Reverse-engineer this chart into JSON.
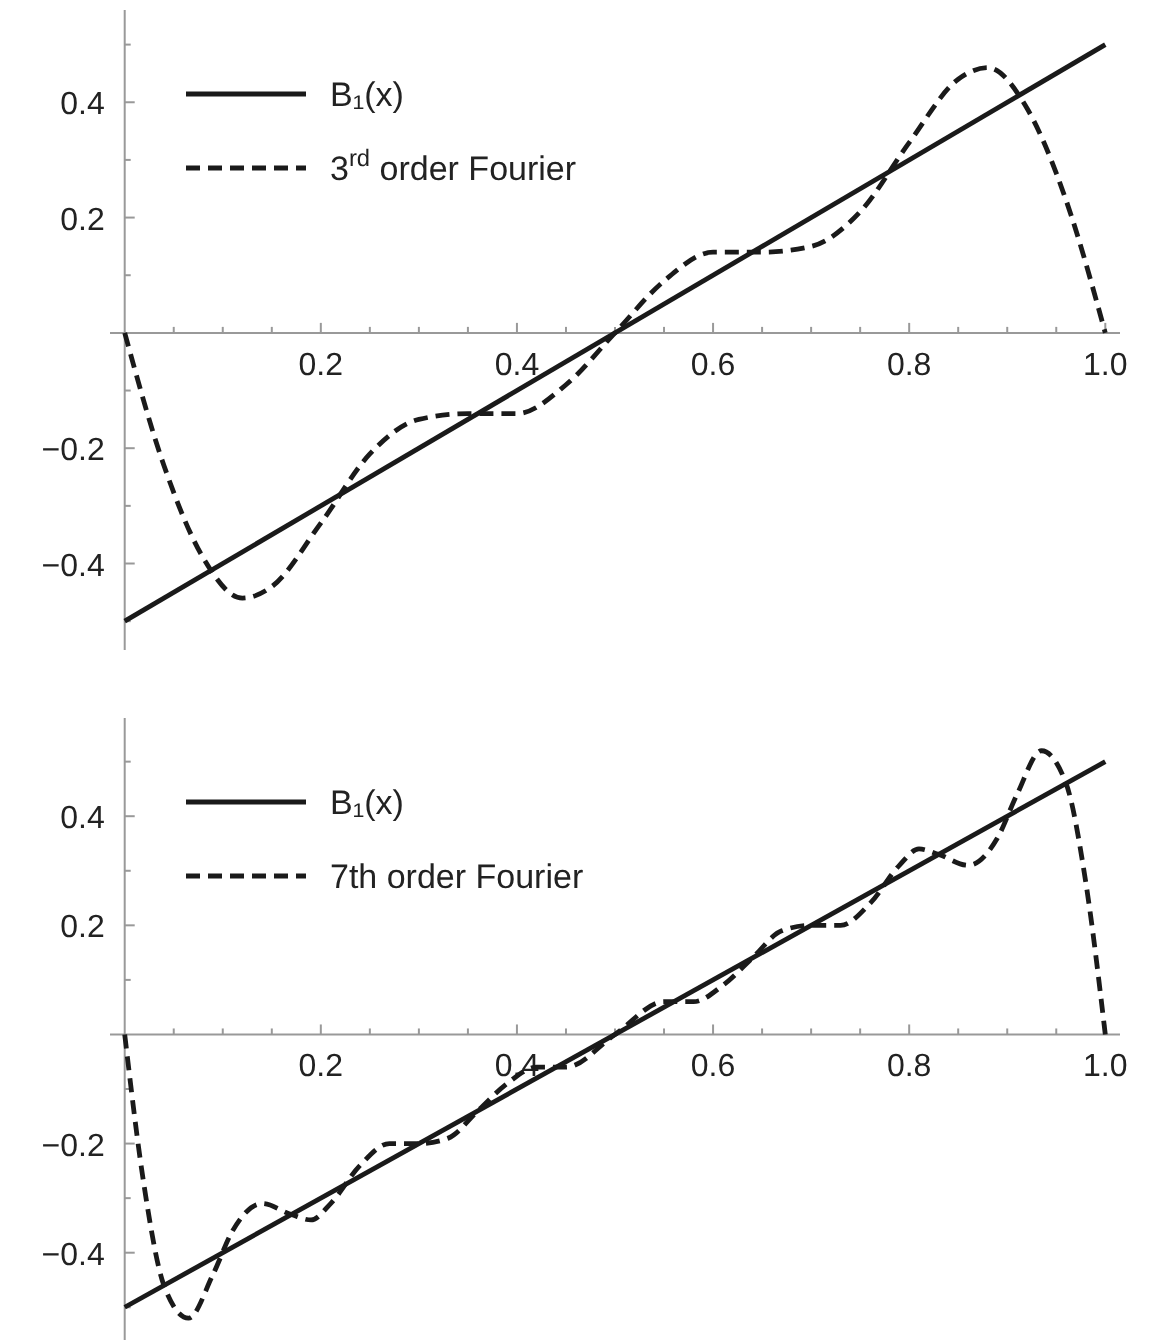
{
  "chart_data": [
    {
      "type": "line",
      "xlim": [
        -0.015,
        1.015
      ],
      "ylim": [
        -0.55,
        0.56
      ],
      "legend": "top left",
      "xticks": [
        {
          "value": 0.05,
          "label": null
        },
        {
          "value": 0.1,
          "label": null
        },
        {
          "value": 0.15,
          "label": null
        },
        0.2,
        {
          "value": 0.25,
          "label": null
        },
        {
          "value": 0.3,
          "label": null
        },
        {
          "value": 0.35,
          "label": null
        },
        0.4,
        {
          "value": 0.45,
          "label": null
        },
        {
          "value": 0.5,
          "label": null
        },
        {
          "value": 0.55,
          "label": null
        },
        0.6,
        {
          "value": 0.65,
          "label": null
        },
        {
          "value": 0.7,
          "label": null
        },
        {
          "value": 0.75,
          "label": null
        },
        0.8,
        {
          "value": 0.85,
          "label": null
        },
        {
          "value": 0.9,
          "label": null
        },
        {
          "value": 0.95,
          "label": null
        },
        {
          "value": 1,
          "label": "1.0"
        }
      ],
      "yticks": [
        {
          "value": -0.5,
          "label": null
        },
        -0.4,
        {
          "value": -0.3,
          "label": null
        },
        -0.2,
        {
          "value": -0.1,
          "label": null
        },
        {
          "value": 0.1,
          "label": null
        },
        0.2,
        {
          "value": 0.3,
          "label": null
        },
        0.4,
        {
          "value": 0.5,
          "label": null
        }
      ],
      "series": [
        {
          "name": "B₁(x)",
          "color": "#1a1a1a",
          "line_style": "solid",
          "x": [
            0,
            1
          ],
          "values": [
            -0.5,
            0.5
          ]
        },
        {
          "name": "3$^{rd}$ order Fourier",
          "color": "#1a1a1a",
          "line_style": "dashed",
          "x": [
            0,
            0.04,
            0.08,
            0.12,
            0.15,
            0.2,
            0.25,
            0.3,
            0.35,
            0.4,
            0.45,
            0.5,
            0.55,
            0.6,
            0.65,
            0.7,
            0.75,
            0.8,
            0.85,
            0.88,
            0.92,
            0.96,
            1
          ],
          "values": [
            0,
            -0.23,
            -0.39,
            -0.46,
            -0.44,
            -0.33,
            -0.21,
            -0.15,
            -0.14,
            -0.14,
            -0.09,
            0,
            0.09,
            0.14,
            0.14,
            0.15,
            0.21,
            0.33,
            0.44,
            0.46,
            0.39,
            0.23,
            0
          ]
        }
      ]
    },
    {
      "type": "line",
      "xlim": [
        -0.015,
        1.015
      ],
      "ylim": [
        -0.56,
        0.58
      ],
      "legend": "top left",
      "xticks": [
        {
          "value": 0.05,
          "label": null
        },
        {
          "value": 0.1,
          "label": null
        },
        {
          "value": 0.15,
          "label": null
        },
        0.2,
        {
          "value": 0.25,
          "label": null
        },
        {
          "value": 0.3,
          "label": null
        },
        {
          "value": 0.35,
          "label": null
        },
        0.4,
        {
          "value": 0.45,
          "label": null
        },
        {
          "value": 0.5,
          "label": null
        },
        {
          "value": 0.55,
          "label": null
        },
        0.6,
        {
          "value": 0.65,
          "label": null
        },
        {
          "value": 0.7,
          "label": null
        },
        {
          "value": 0.75,
          "label": null
        },
        0.8,
        {
          "value": 0.85,
          "label": null
        },
        {
          "value": 0.9,
          "label": null
        },
        {
          "value": 0.95,
          "label": null
        },
        {
          "value": 1,
          "label": "1.0"
        }
      ],
      "yticks": [
        {
          "value": -0.5,
          "label": null
        },
        -0.4,
        {
          "value": -0.3,
          "label": null
        },
        -0.2,
        {
          "value": -0.1,
          "label": null
        },
        {
          "value": 0.1,
          "label": null
        },
        0.2,
        {
          "value": 0.3,
          "label": null
        },
        0.4,
        {
          "value": 0.5,
          "label": null
        }
      ],
      "series": [
        {
          "name": "B₁(x)",
          "color": "#1a1a1a",
          "line_style": "solid",
          "x": [
            0,
            1
          ],
          "values": [
            -0.5,
            0.5
          ]
        },
        {
          "name": "7th order Fourier",
          "color": "#1a1a1a",
          "line_style": "dashed",
          "x": [
            0,
            0.02,
            0.04,
            0.065,
            0.09,
            0.11,
            0.14,
            0.17,
            0.19,
            0.21,
            0.24,
            0.27,
            0.3,
            0.33,
            0.36,
            0.39,
            0.42,
            0.45,
            0.5,
            0.55,
            0.58,
            0.61,
            0.64,
            0.67,
            0.7,
            0.73,
            0.76,
            0.79,
            0.81,
            0.83,
            0.86,
            0.89,
            0.91,
            0.935,
            0.96,
            0.98,
            1
          ],
          "values": [
            0,
            -0.28,
            -0.46,
            -0.52,
            -0.44,
            -0.36,
            -0.31,
            -0.33,
            -0.34,
            -0.31,
            -0.24,
            -0.2,
            -0.2,
            -0.19,
            -0.14,
            -0.09,
            -0.06,
            -0.06,
            0,
            0.06,
            0.06,
            0.09,
            0.14,
            0.19,
            0.2,
            0.2,
            0.24,
            0.31,
            0.34,
            0.33,
            0.31,
            0.36,
            0.44,
            0.52,
            0.46,
            0.28,
            0
          ]
        }
      ]
    }
  ]
}
